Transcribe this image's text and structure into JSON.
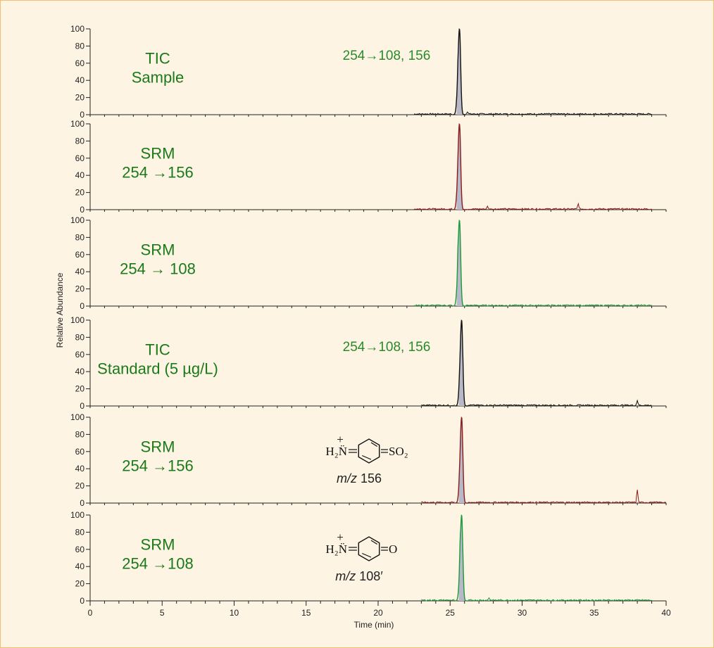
{
  "chart_data": {
    "type": "line",
    "xlabel": "Time (min)",
    "ylabel": "Relative Abundance",
    "xlim": [
      0,
      40
    ],
    "ylim": [
      0,
      100
    ],
    "x_ticks": [
      0,
      5,
      10,
      15,
      20,
      25,
      30,
      35,
      40
    ],
    "y_ticks": [
      0,
      20,
      40,
      60,
      80,
      100
    ],
    "panels": [
      {
        "label_lines": [
          "TIC",
          "Sample"
        ],
        "color": "#111111",
        "annotation": "254→108, 156",
        "peak_x": 25.65,
        "peak_y": 100,
        "peak_shoulder_y": 75,
        "baseline_start": 22.5,
        "baseline_end": 39.0,
        "side_peaks": [
          {
            "x": 26.2,
            "y": 3
          }
        ],
        "structure": null
      },
      {
        "label_lines": [
          "SRM",
          "254 →156"
        ],
        "color": "#8b1a1a",
        "annotation": "",
        "peak_x": 25.65,
        "peak_y": 100,
        "peak_shoulder_y": 68,
        "baseline_start": 22.5,
        "baseline_end": 39.0,
        "side_peaks": [
          {
            "x": 25.9,
            "y": 22
          },
          {
            "x": 27.6,
            "y": 3
          },
          {
            "x": 33.9,
            "y": 6
          }
        ],
        "structure": null
      },
      {
        "label_lines": [
          "SRM",
          "254 → 108"
        ],
        "color": "#1a9a3a",
        "annotation": "",
        "peak_x": 25.65,
        "peak_y": 100,
        "peak_shoulder_y": 80,
        "baseline_start": 22.5,
        "baseline_end": 39.0,
        "side_peaks": [],
        "structure": null
      },
      {
        "label_lines": [
          "TIC",
          "Standard (5 µg/L)"
        ],
        "color": "#111111",
        "annotation": "254→108, 156",
        "peak_x": 25.8,
        "peak_y": 100,
        "peak_shoulder_y": 70,
        "baseline_start": 23.0,
        "baseline_end": 39.0,
        "side_peaks": [
          {
            "x": 38.0,
            "y": 6
          }
        ],
        "structure": null
      },
      {
        "label_lines": [
          "SRM",
          "254 →156"
        ],
        "color": "#8b1a1a",
        "annotation": "",
        "peak_x": 25.8,
        "peak_y": 100,
        "peak_shoulder_y": 60,
        "baseline_start": 23.0,
        "baseline_end": 40.0,
        "side_peaks": [
          {
            "x": 38.0,
            "y": 15
          }
        ],
        "structure": {
          "left": "H₂N̈",
          "plus": "+",
          "right": "SO₂",
          "mz_prefix": "m/z",
          "mz_value": "156"
        }
      },
      {
        "label_lines": [
          "SRM",
          "254 →108"
        ],
        "color": "#1a9a3a",
        "annotation": "",
        "peak_x": 25.8,
        "peak_y": 100,
        "peak_shoulder_y": 82,
        "baseline_start": 23.0,
        "baseline_end": 39.0,
        "side_peaks": [
          {
            "x": 27.7,
            "y": 3
          }
        ],
        "structure": {
          "left": "H₂N̈",
          "plus": "+",
          "right": "O",
          "mz_prefix": "m/z",
          "mz_value": "108′"
        }
      }
    ]
  },
  "colors": {
    "background": "#fdf4e3",
    "border": "#f0c070",
    "label_green": "#1a7a1a",
    "peak_fill": "#b8b8c8"
  }
}
